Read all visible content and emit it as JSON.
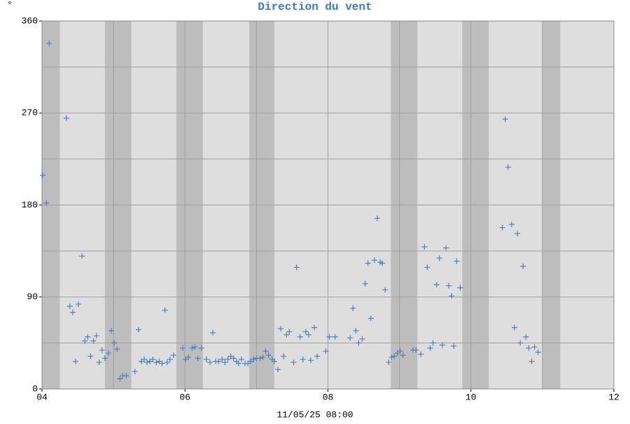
{
  "chart_data": {
    "type": "scatter",
    "title": "Direction du vent",
    "unit": "°",
    "xlabel": "11/05/25 08:00",
    "color": "#4a80c0",
    "grid": true,
    "xlim": [
      4,
      12
    ],
    "xticks": [
      {
        "value": 4,
        "label": "04"
      },
      {
        "value": 6,
        "label": "06"
      },
      {
        "value": 8,
        "label": "08"
      },
      {
        "value": 10,
        "label": "10"
      },
      {
        "value": 12,
        "label": "12"
      }
    ],
    "xgrid": [
      5,
      7,
      9,
      11
    ],
    "ylim": [
      0,
      360
    ],
    "yticks": [
      0,
      90,
      180,
      270,
      360
    ],
    "ygrid": [
      45,
      135,
      225,
      315
    ],
    "bands": [
      [
        4.0,
        4.25
      ],
      [
        4.88,
        5.25
      ],
      [
        5.88,
        6.25
      ],
      [
        6.9,
        7.25
      ],
      [
        8.88,
        9.25
      ],
      [
        9.88,
        10.25
      ],
      [
        11.0,
        11.25
      ]
    ],
    "x": [
      4.01,
      4.06,
      4.1,
      4.34,
      4.39,
      4.43,
      4.47,
      4.51,
      4.56,
      4.6,
      4.64,
      4.68,
      4.72,
      4.76,
      4.8,
      4.84,
      4.88,
      4.93,
      4.97,
      5.01,
      5.05,
      5.09,
      5.13,
      5.18,
      5.3,
      5.35,
      5.39,
      5.43,
      5.47,
      5.51,
      5.55,
      5.6,
      5.64,
      5.68,
      5.72,
      5.75,
      5.79,
      5.84,
      5.97,
      6.01,
      6.05,
      6.1,
      6.14,
      6.18,
      6.23,
      6.3,
      6.35,
      6.39,
      6.43,
      6.47,
      6.52,
      6.56,
      6.6,
      6.64,
      6.68,
      6.72,
      6.75,
      6.79,
      6.84,
      6.88,
      6.92,
      6.96,
      7.0,
      7.05,
      7.09,
      7.13,
      7.17,
      7.22,
      7.25,
      7.3,
      7.34,
      7.38,
      7.42,
      7.46,
      7.52,
      7.56,
      7.61,
      7.65,
      7.69,
      7.73,
      7.76,
      7.81,
      7.85,
      7.97,
      8.02,
      8.1,
      8.31,
      8.35,
      8.39,
      8.43,
      8.48,
      8.52,
      8.56,
      8.6,
      8.65,
      8.69,
      8.73,
      8.76,
      8.8,
      8.85,
      8.89,
      8.93,
      8.97,
      9.01,
      9.05,
      9.19,
      9.23,
      9.3,
      9.35,
      9.39,
      9.43,
      9.47,
      9.52,
      9.56,
      9.6,
      9.65,
      9.69,
      9.73,
      9.76,
      9.8,
      9.85,
      10.44,
      10.48,
      10.52,
      10.57,
      10.61,
      10.65,
      10.69,
      10.73,
      10.77,
      10.81,
      10.85,
      10.89,
      10.94
    ],
    "values": [
      209,
      182,
      338,
      265,
      81,
      75,
      27,
      83,
      130,
      47,
      51,
      32,
      47,
      52,
      26,
      38,
      30,
      35,
      57,
      45,
      39,
      10,
      13,
      13,
      17,
      58,
      27,
      29,
      26,
      27,
      29,
      26,
      27,
      25,
      77,
      26,
      29,
      33,
      40,
      29,
      31,
      40,
      41,
      30,
      40,
      29,
      26,
      55,
      27,
      27,
      29,
      26,
      29,
      32,
      30,
      27,
      25,
      29,
      25,
      25,
      27,
      29,
      30,
      30,
      31,
      37,
      33,
      29,
      27,
      19,
      59,
      32,
      53,
      56,
      26,
      119,
      51,
      29,
      56,
      53,
      28,
      60,
      32,
      37,
      51,
      51,
      50,
      79,
      57,
      45,
      49,
      103,
      123,
      69,
      126,
      167,
      124,
      123,
      97,
      26,
      31,
      32,
      35,
      37,
      33,
      38,
      38,
      34,
      139,
      119,
      40,
      45,
      102,
      128,
      43,
      138,
      101,
      91,
      42,
      125,
      99,
      158,
      264,
      217,
      161,
      60,
      152,
      45,
      120,
      51,
      40,
      27,
      41,
      36
    ]
  }
}
